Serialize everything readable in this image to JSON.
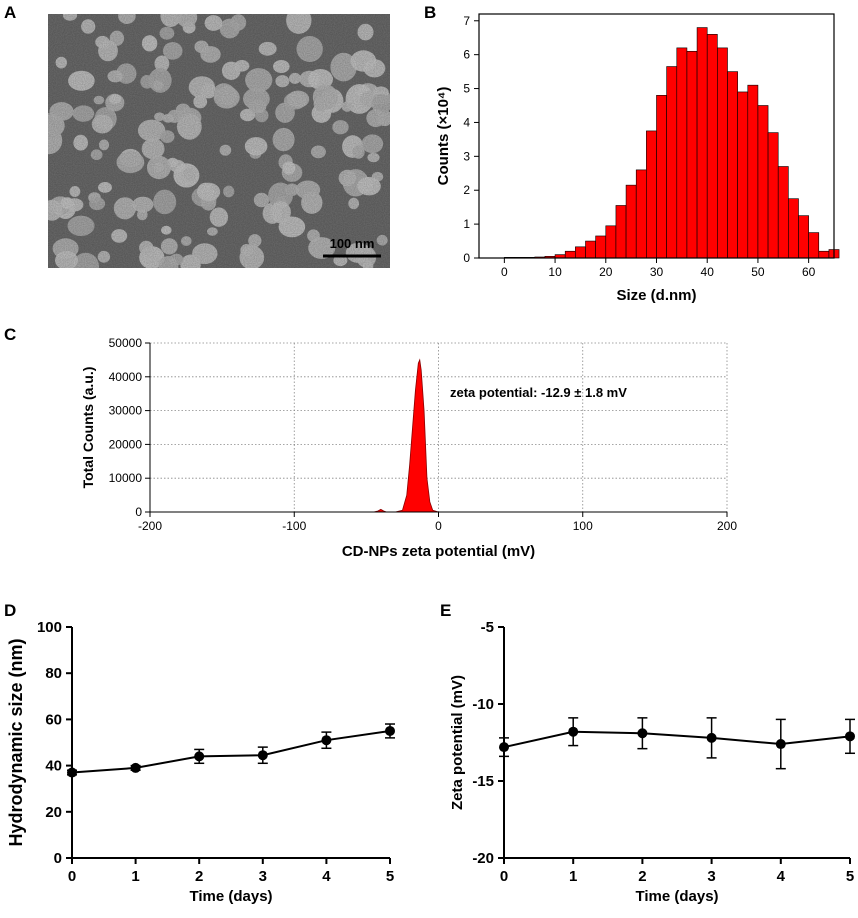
{
  "panels": {
    "A": {
      "label": "A",
      "scale_bar_label": "100 nm"
    },
    "B": {
      "label": "B"
    },
    "C": {
      "label": "C"
    },
    "D": {
      "label": "D"
    },
    "E": {
      "label": "E"
    }
  },
  "chart_data": [
    {
      "id": "B",
      "type": "bar",
      "title": "",
      "xlabel": "Size (d.nm)",
      "ylabel": "Counts  (×10⁴)",
      "xlim": [
        -5,
        65
      ],
      "ylim": [
        0,
        7.2
      ],
      "xticks": [
        "0",
        "10",
        "20",
        "30",
        "40",
        "50",
        "60"
      ],
      "yticks": [
        "0",
        "1",
        "2",
        "3",
        "4",
        "5",
        "6",
        "7"
      ],
      "bin_width": 2,
      "bin_starts": [
        0,
        2,
        4,
        6,
        8,
        10,
        12,
        14,
        16,
        18,
        20,
        22,
        24,
        26,
        28,
        30,
        32,
        34,
        36,
        38,
        40,
        42,
        44,
        46,
        48,
        50,
        52,
        54,
        56,
        58,
        60,
        62,
        64
      ],
      "values": [
        0.02,
        0.02,
        0.02,
        0.03,
        0.05,
        0.1,
        0.2,
        0.33,
        0.5,
        0.65,
        0.95,
        1.55,
        2.15,
        2.6,
        3.75,
        4.8,
        5.65,
        6.2,
        6.1,
        6.8,
        6.6,
        6.2,
        5.5,
        4.9,
        5.1,
        4.5,
        3.7,
        2.7,
        1.75,
        1.25,
        0.75,
        0.2,
        0.25
      ],
      "color": "#ff0000"
    },
    {
      "id": "C",
      "type": "area",
      "title": "",
      "xlabel": "CD-NPs zeta potential (mV)",
      "ylabel": "Total Counts (a.u.)",
      "xlim": [
        -200,
        200
      ],
      "ylim": [
        0,
        50000
      ],
      "xticks": [
        "-200",
        "-100",
        "0",
        "100",
        "200"
      ],
      "yticks": [
        "0",
        "10000",
        "20000",
        "30000",
        "40000",
        "50000"
      ],
      "grid": true,
      "x": [
        -45,
        -42,
        -40,
        -38,
        -36,
        -30,
        -25,
        -22,
        -20,
        -18,
        -16,
        -14,
        -13,
        -12,
        -10,
        -8,
        -6,
        -4,
        0
      ],
      "y": [
        0,
        300,
        800,
        300,
        0,
        0,
        500,
        5000,
        14000,
        25000,
        36000,
        44000,
        45000,
        42000,
        30000,
        10000,
        3000,
        500,
        0
      ],
      "annotation": "zeta potential: -12.9 ± 1.8 mV",
      "color": "#ff0000"
    },
    {
      "id": "D",
      "type": "line",
      "title": "",
      "xlabel": "Time (days)",
      "ylabel": "Hydrodynamic size (nm)",
      "xlim": [
        0,
        5
      ],
      "ylim": [
        0,
        100
      ],
      "xticks": [
        "0",
        "1",
        "2",
        "3",
        "4",
        "5"
      ],
      "yticks": [
        "0",
        "20",
        "40",
        "60",
        "80",
        "100"
      ],
      "x": [
        0,
        1,
        2,
        3,
        4,
        5
      ],
      "y": [
        37,
        39,
        44,
        44.5,
        51,
        55
      ],
      "yerr": [
        1,
        1,
        3,
        3.5,
        3.5,
        3
      ]
    },
    {
      "id": "E",
      "type": "line",
      "title": "",
      "xlabel": "Time (days)",
      "ylabel": "Zeta potential (mV)",
      "xlim": [
        0,
        5
      ],
      "ylim": [
        -20,
        -5
      ],
      "xticks": [
        "0",
        "1",
        "2",
        "3",
        "4",
        "5"
      ],
      "yticks": [
        "-20",
        "-15",
        "-10",
        "-5"
      ],
      "x": [
        0,
        1,
        2,
        3,
        4,
        5
      ],
      "y": [
        -12.8,
        -11.8,
        -11.9,
        -12.2,
        -12.6,
        -12.1
      ],
      "yerr": [
        0.6,
        0.9,
        1.0,
        1.3,
        1.6,
        1.1
      ]
    }
  ]
}
